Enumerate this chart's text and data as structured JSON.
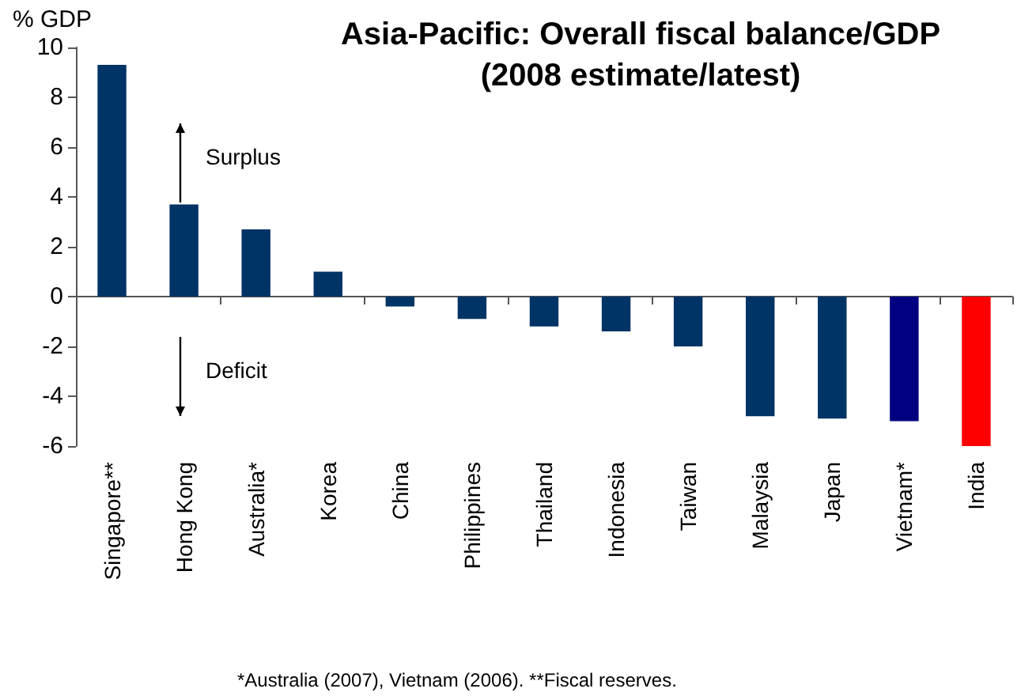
{
  "chart_data": {
    "type": "bar",
    "title": "Asia-Pacific: Overall fiscal balance/GDP\n(2008 estimate/latest)",
    "ylabel": "% GDP",
    "categories": [
      "Singapore**",
      "Hong Kong",
      "Australia*",
      "Korea",
      "China",
      "Philippines",
      "Thailand",
      "Indonesia",
      "Taiwan",
      "Malaysia",
      "Japan",
      "Vietnam*",
      "India"
    ],
    "values": [
      9.3,
      3.7,
      2.7,
      1.0,
      -0.4,
      -0.9,
      -1.2,
      -1.4,
      -2.0,
      -4.8,
      -4.9,
      -5.0,
      -6.0
    ],
    "colors": [
      "#003366",
      "#003366",
      "#003366",
      "#003366",
      "#003366",
      "#003366",
      "#003366",
      "#003366",
      "#003366",
      "#003366",
      "#003366",
      "#000080",
      "#ff0000"
    ],
    "ylim": [
      -6,
      10
    ],
    "yticks": [
      -6,
      -4,
      -2,
      0,
      2,
      4,
      6,
      8,
      10
    ],
    "annotations": [
      "Surplus",
      "Deficit",
      "*Australia (2007), Vietnam (2006). **Fiscal reserves."
    ]
  }
}
